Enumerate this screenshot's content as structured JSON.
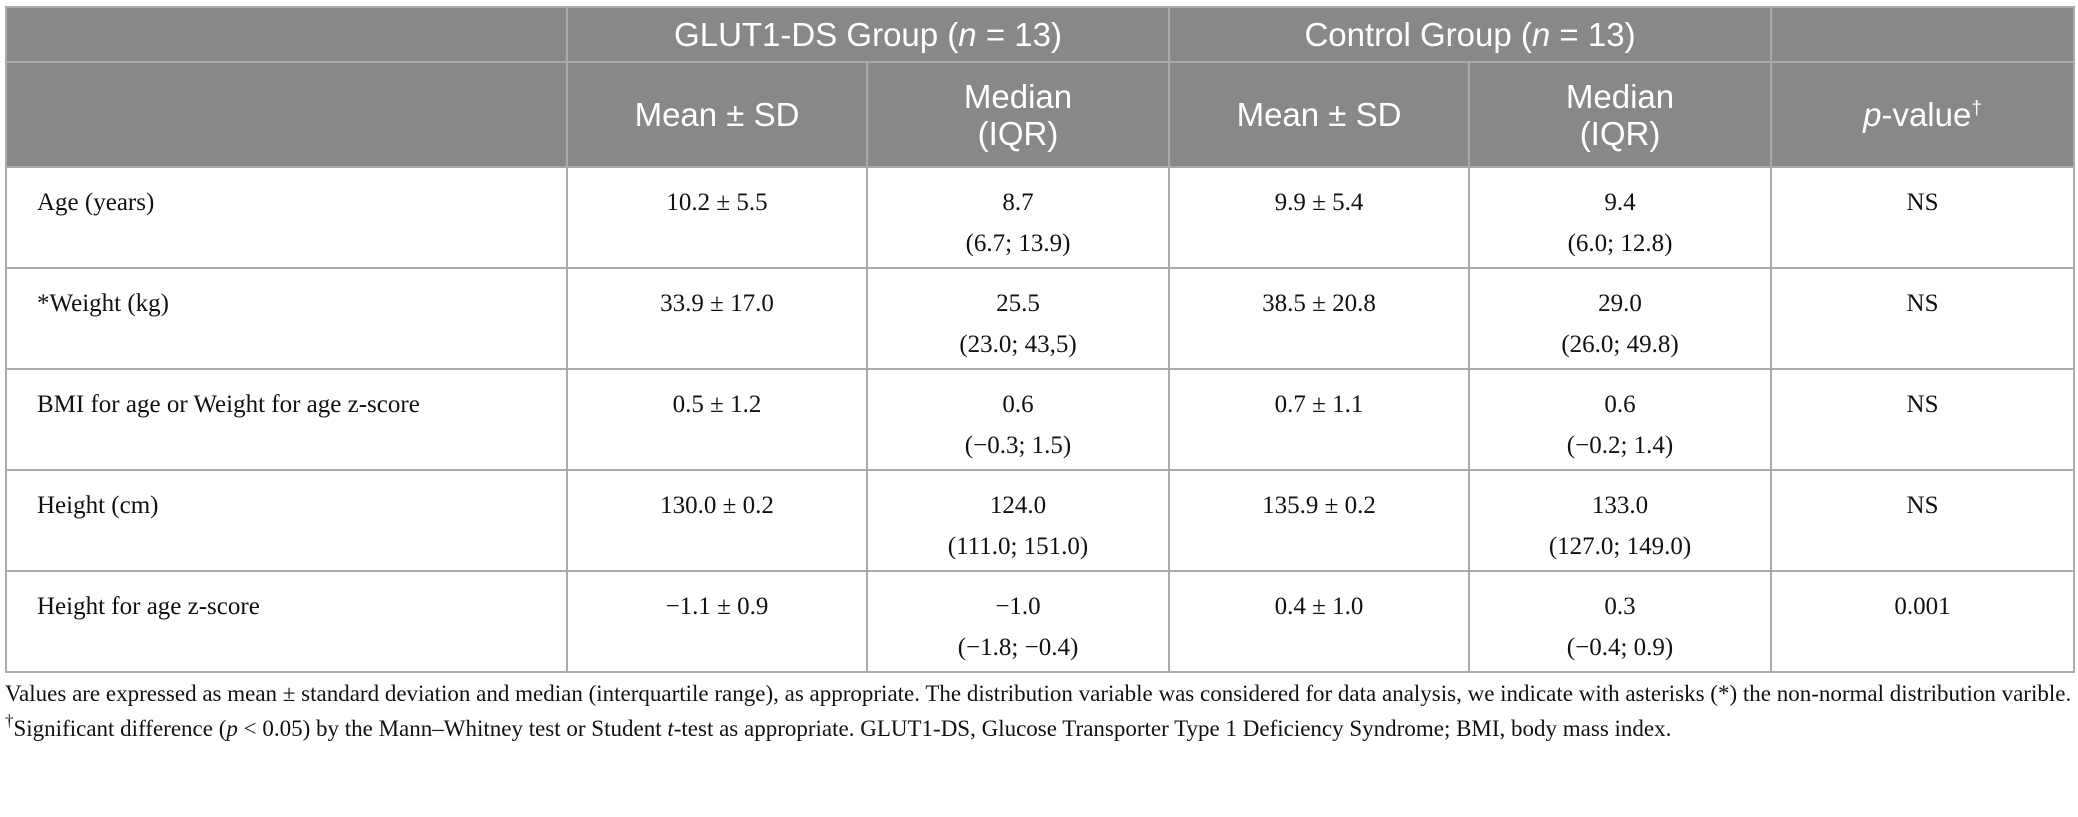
{
  "header": {
    "group1": {
      "name": "GLUT1-DS Group (",
      "n_symbol": "n",
      "n_value": " = 13)"
    },
    "group2": {
      "name": "Control Group (",
      "n_symbol": "n",
      "n_value": " = 13)"
    },
    "sub": {
      "mean_sd": "Mean ± SD",
      "median_line1": "Median",
      "median_line2": "(IQR)"
    },
    "pvalue": {
      "p": "p",
      "rest": "-value",
      "mark": "†"
    }
  },
  "rows": [
    {
      "label": "Age (years)",
      "g1_mean": "10.2 ± 5.5",
      "g1_median": "8.7",
      "g1_iqr": "(6.7; 13.9)",
      "g2_mean": "9.9 ± 5.4",
      "g2_median": "9.4",
      "g2_iqr": "(6.0; 12.8)",
      "p": "NS"
    },
    {
      "label": "*Weight (kg)",
      "g1_mean": "33.9 ± 17.0",
      "g1_median": "25.5",
      "g1_iqr": "(23.0; 43,5)",
      "g2_mean": "38.5 ± 20.8",
      "g2_median": "29.0",
      "g2_iqr": "(26.0; 49.8)",
      "p": "NS"
    },
    {
      "label": "BMI for age or Weight for age z-score",
      "g1_mean": "0.5 ± 1.2",
      "g1_median": "0.6",
      "g1_iqr": "(−0.3; 1.5)",
      "g2_mean": "0.7 ± 1.1",
      "g2_median": "0.6",
      "g2_iqr": "(−0.2; 1.4)",
      "p": "NS"
    },
    {
      "label": "Height (cm)",
      "g1_mean": "130.0 ± 0.2",
      "g1_median": "124.0",
      "g1_iqr": "(111.0; 151.0)",
      "g2_mean": "135.9 ± 0.2",
      "g2_median": "133.0",
      "g2_iqr": "(127.0; 149.0)",
      "p": "NS"
    },
    {
      "label": "Height for age z-score",
      "g1_mean": "−1.1 ± 0.9",
      "g1_median": "−1.0",
      "g1_iqr": "(−1.8; −0.4)",
      "g2_mean": "0.4 ± 1.0",
      "g2_median": "0.3",
      "g2_iqr": "(−0.4; 0.9)",
      "p": "0.001"
    }
  ],
  "footnote": {
    "part1": "Values are expressed as mean ± standard deviation and median (interquartile range), as appropriate. The distribution variable was considered for data analysis, we indicate with asterisks (*) the non-normal distribution varible. ",
    "mark": "†",
    "part2": "Significant difference (",
    "p": "p",
    "part3": " < 0.05) by the Mann–Whitney test or Student ",
    "t": "t",
    "part4": "-test as appropriate. GLUT1-DS, Glucose Transporter Type 1 Deficiency Syndrome; BMI, body mass index."
  }
}
